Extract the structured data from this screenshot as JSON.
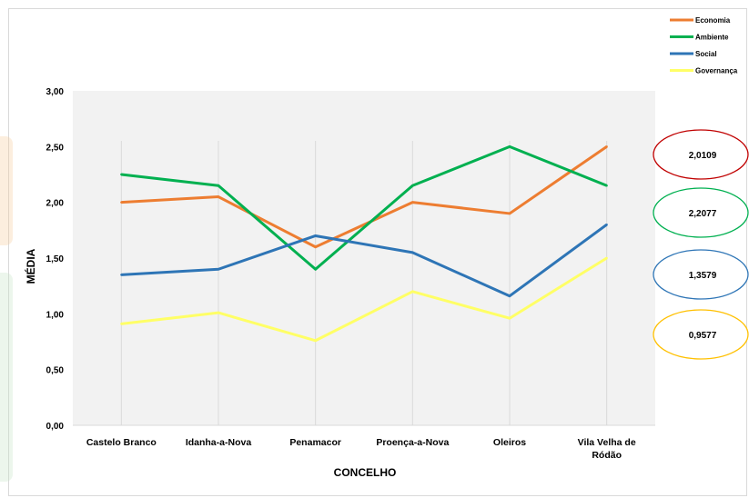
{
  "chart_data": {
    "type": "line",
    "title": "",
    "xlabel": "CONCELHO",
    "ylabel": "MÉDIA",
    "ylim": [
      0,
      3
    ],
    "yticks": [
      "0,00",
      "0,50",
      "1,00",
      "1,50",
      "2,00",
      "2,50",
      "3,00"
    ],
    "yticks_values": [
      0,
      0.5,
      1,
      1.5,
      2,
      2.5,
      3
    ],
    "grid": "vertical",
    "legend_position": "top-right",
    "categories": [
      [
        "Castelo Branco"
      ],
      [
        "Idanha-a-Nova"
      ],
      [
        "Penamacor"
      ],
      [
        "Proença-a-Nova"
      ],
      [
        "Oleiros"
      ],
      [
        "Vila Velha de",
        "Ródão"
      ]
    ],
    "series": [
      {
        "name": "Economia",
        "color": "#ED7D31",
        "values": [
          2.0,
          2.05,
          1.6,
          2.0,
          1.9,
          2.5
        ]
      },
      {
        "name": "Ambiente",
        "color": "#00B050",
        "values": [
          2.25,
          2.15,
          1.4,
          2.15,
          2.5,
          2.15
        ]
      },
      {
        "name": "Social",
        "color": "#2E75B6",
        "values": [
          1.35,
          1.4,
          1.7,
          1.55,
          1.16,
          1.8
        ]
      },
      {
        "name": "Governança",
        "color": "#FFFF66",
        "values": [
          0.91,
          1.01,
          0.76,
          1.2,
          0.96,
          1.5
        ]
      }
    ],
    "averages": [
      {
        "value": "2,0109",
        "color": "#C00000"
      },
      {
        "value": "2,2077",
        "color": "#00B050"
      },
      {
        "value": "1,3579",
        "color": "#2E75B6"
      },
      {
        "value": "0,9577",
        "color": "#FFC000"
      }
    ]
  }
}
